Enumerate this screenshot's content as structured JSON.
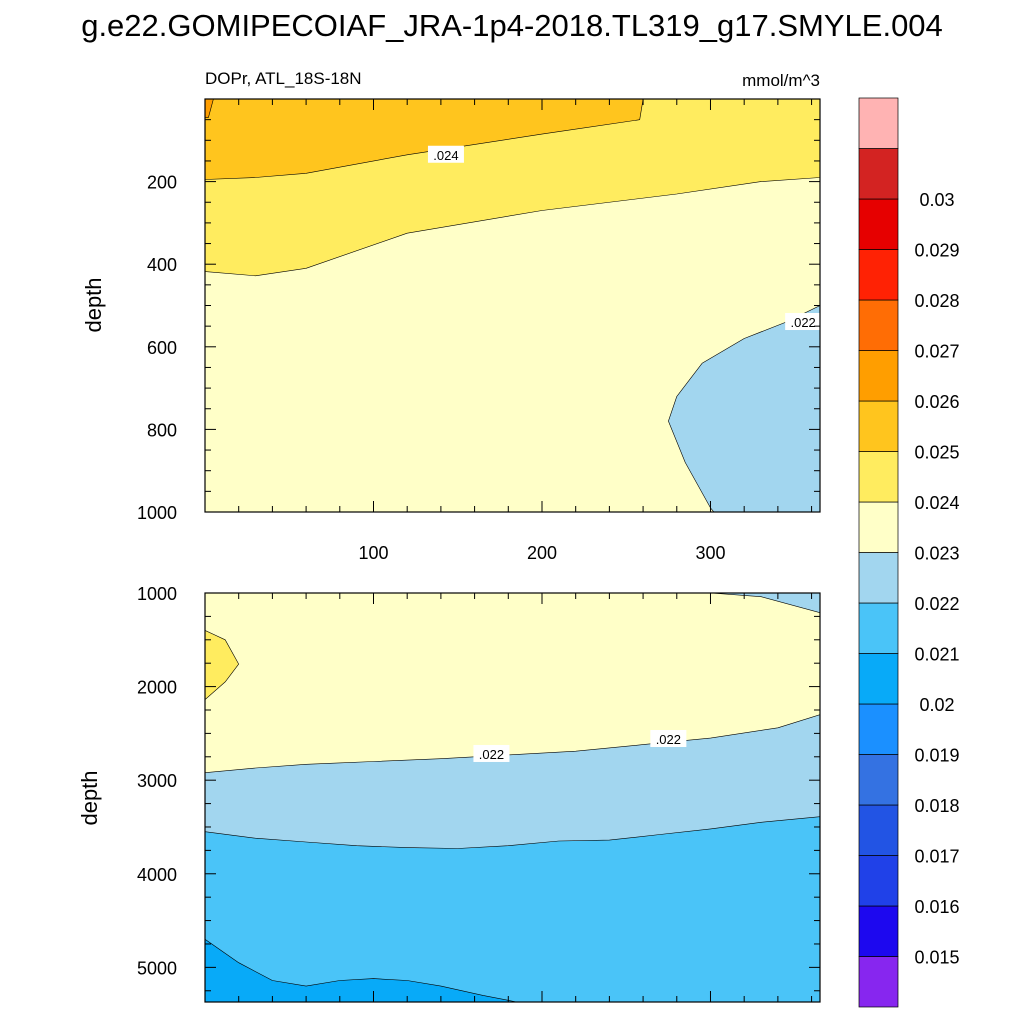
{
  "chart_data": [
    {
      "type": "contour",
      "panel": "upper",
      "title": "g.e22.GOMIPECOIAF_JRA-1p4-2018.TL319_g17.SMYLE.004",
      "left_subtitle": "DOPr, ATL_18S-18N",
      "right_subtitle": "mmol/m^3",
      "xlabel": "",
      "ylabel": "depth",
      "xlim": [
        0,
        365
      ],
      "ylim": [
        1000,
        0
      ],
      "x_ticks": [
        100,
        200,
        300
      ],
      "x_tick_labels": [
        "100",
        "200",
        "300"
      ],
      "y_ticks": [
        200,
        400,
        600,
        800,
        1000
      ],
      "y_tick_labels": [
        "200",
        "400",
        "600",
        "800",
        "1000"
      ],
      "contour_labels": [
        {
          "text": ".024",
          "x": 143,
          "y": 135
        },
        {
          "text": ".022",
          "x": 355,
          "y": 540
        }
      ],
      "regions": [
        {
          "level": "0.022-0.023",
          "color": "#ffffc8",
          "boundary": [
            [
              0,
              0
            ],
            [
              365,
              0
            ],
            [
              365,
              1000
            ],
            [
              0,
              1000
            ]
          ]
        },
        {
          "level": "0.023-0.024",
          "color": "#ffec5f",
          "boundary": [
            [
              0,
              0
            ],
            [
              365,
              0
            ],
            [
              365,
              190
            ],
            [
              330,
              200
            ],
            [
              280,
              230
            ],
            [
              200,
              270
            ],
            [
              120,
              325
            ],
            [
              60,
              410
            ],
            [
              30,
              428
            ],
            [
              0,
              418
            ]
          ]
        },
        {
          "level": "0.024-0.025",
          "color": "#ffc51e",
          "boundary": [
            [
              0,
              0
            ],
            [
              260,
              0
            ],
            [
              258,
              50
            ],
            [
              200,
              85
            ],
            [
              120,
              135
            ],
            [
              60,
              180
            ],
            [
              30,
              190
            ],
            [
              0,
              195
            ]
          ]
        },
        {
          "level": "0.025-0.026",
          "color": "#ff9e00",
          "boundary": [
            [
              0,
              0
            ],
            [
              5,
              0
            ],
            [
              2,
              45
            ],
            [
              0,
              45
            ]
          ]
        },
        {
          "level": "0.021-0.022",
          "color": "#a2d6ef",
          "boundary": [
            [
              365,
              500
            ],
            [
              345,
              540
            ],
            [
              320,
              580
            ],
            [
              295,
              640
            ],
            [
              280,
              720
            ],
            [
              275,
              780
            ],
            [
              285,
              880
            ],
            [
              300,
              990
            ],
            [
              302,
              1000
            ],
            [
              365,
              1000
            ]
          ]
        }
      ]
    },
    {
      "type": "contour",
      "panel": "lower",
      "xlabel": "",
      "ylabel": "depth",
      "xlim": [
        0,
        365
      ],
      "ylim": [
        5370,
        1000
      ],
      "x_ticks": [
        100,
        200,
        300
      ],
      "y_ticks": [
        1000,
        2000,
        3000,
        4000,
        5000
      ],
      "y_tick_labels": [
        "1000",
        "2000",
        "3000",
        "4000",
        "5000"
      ],
      "contour_labels": [
        {
          "text": ".022",
          "x": 170,
          "y": 2720
        },
        {
          "text": ".022",
          "x": 275,
          "y": 2560
        }
      ],
      "regions": [
        {
          "level": "0.022-0.023",
          "color": "#ffffc8",
          "boundary": [
            [
              0,
              1000
            ],
            [
              365,
              1000
            ],
            [
              365,
              5370
            ],
            [
              0,
              5370
            ]
          ]
        },
        {
          "level": "0.023-0.024",
          "color": "#ffec5f",
          "boundary": [
            [
              0,
              1400
            ],
            [
              12,
              1500
            ],
            [
              20,
              1760
            ],
            [
              12,
              1950
            ],
            [
              0,
              2140
            ]
          ]
        },
        {
          "level": "0.021-0.022",
          "color": "#a2d6ef",
          "boundary": [
            [
              0,
              2920
            ],
            [
              30,
              2870
            ],
            [
              60,
              2830
            ],
            [
              100,
              2800
            ],
            [
              140,
              2770
            ],
            [
              180,
              2730
            ],
            [
              220,
              2690
            ],
            [
              260,
              2620
            ],
            [
              300,
              2550
            ],
            [
              340,
              2440
            ],
            [
              365,
              2300
            ],
            [
              365,
              5370
            ],
            [
              0,
              5370
            ]
          ]
        },
        {
          "level": "0.021-0.022",
          "color": "#a2d6ef",
          "boundary": [
            [
              300,
              1000
            ],
            [
              330,
              1040
            ],
            [
              365,
              1210
            ],
            [
              365,
              1000
            ]
          ]
        },
        {
          "level": "0.02-0.021",
          "color": "#4ac4f8",
          "boundary": [
            [
              0,
              3550
            ],
            [
              30,
              3620
            ],
            [
              60,
              3660
            ],
            [
              90,
              3700
            ],
            [
              120,
              3720
            ],
            [
              150,
              3730
            ],
            [
              180,
              3700
            ],
            [
              210,
              3650
            ],
            [
              240,
              3640
            ],
            [
              270,
              3580
            ],
            [
              300,
              3520
            ],
            [
              330,
              3450
            ],
            [
              365,
              3390
            ],
            [
              365,
              5370
            ],
            [
              0,
              5370
            ]
          ]
        },
        {
          "level": "0.019-0.02",
          "color": "#08aaf8",
          "boundary": [
            [
              0,
              4700
            ],
            [
              20,
              4950
            ],
            [
              40,
              5140
            ],
            [
              60,
              5200
            ],
            [
              80,
              5140
            ],
            [
              100,
              5120
            ],
            [
              120,
              5140
            ],
            [
              140,
              5200
            ],
            [
              165,
              5300
            ],
            [
              185,
              5370
            ],
            [
              0,
              5370
            ]
          ]
        }
      ]
    }
  ],
  "colorbar": {
    "colors": [
      "#8726ef",
      "#1d08ef",
      "#2041e8",
      "#2254e4",
      "#3472e2",
      "#1b90ff",
      "#08aaf8",
      "#4ac4f8",
      "#a2d6ef",
      "#ffffc8",
      "#ffec5f",
      "#ffc51e",
      "#ff9e00",
      "#ff6d05",
      "#ff2204",
      "#e60000",
      "#d32322",
      "#ffb3b3"
    ],
    "labels": [
      "0.015",
      "0.016",
      "0.017",
      "0.018",
      "0.019",
      "0.02",
      "0.021",
      "0.022",
      "0.023",
      "0.024",
      "0.025",
      "0.026",
      "0.027",
      "0.028",
      "0.029",
      "0.03"
    ]
  }
}
